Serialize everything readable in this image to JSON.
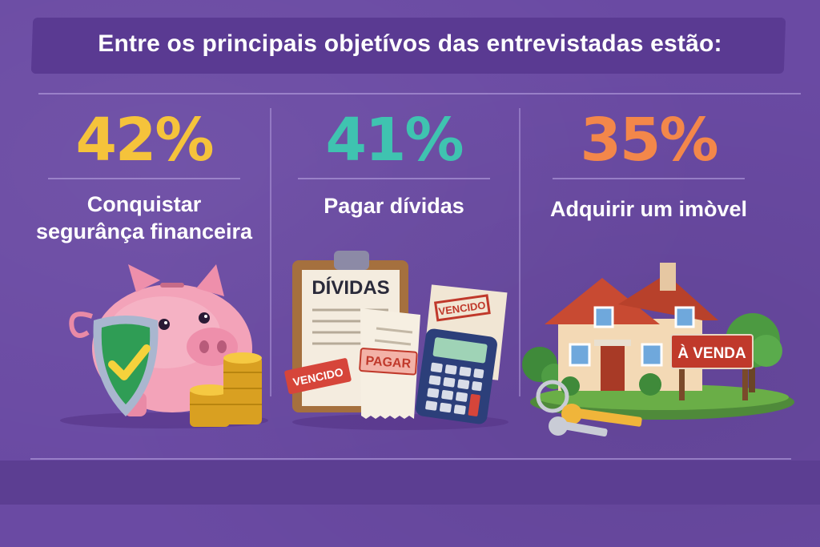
{
  "title": "Entre os principais objetívos das entrevistadas estão:",
  "stats": [
    {
      "percent": "42%",
      "label_line1": "Conquistar",
      "label_line2": "segurânça financeira",
      "color": "#f5c33b",
      "icon": "piggy-bank-shield-coins"
    },
    {
      "percent": "41%",
      "label_line1": "Pagar dívidas",
      "label_line2": "",
      "color": "#3fc3b0",
      "icon": "debt-documents-calculator"
    },
    {
      "percent": "35%",
      "label_line1": "Adquirir um imòvel",
      "label_line2": "",
      "color": "#f3874a",
      "icon": "house-for-sale-keys"
    }
  ],
  "illustrations": {
    "clipboard_title": "DÍVIDAS",
    "stamp_pagar": "PAGAR",
    "stamp_vencido_left": "VENCIDO",
    "stamp_vencido_right": "VENCIDO",
    "sale_sign": "À VENDA"
  }
}
